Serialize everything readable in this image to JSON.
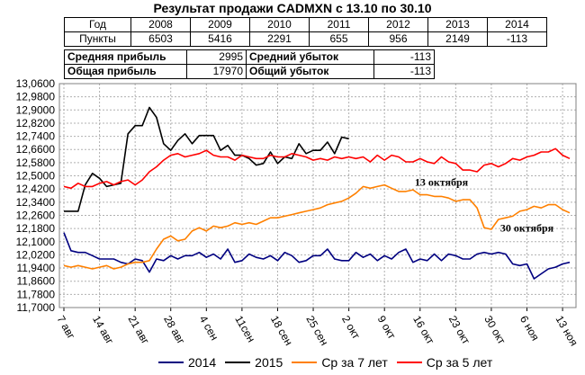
{
  "title": "Результат продажи CADMXN с 13.10 по 30.10",
  "years_table": {
    "header_label": "Год",
    "row_label": "Пункты",
    "years": [
      "2008",
      "2009",
      "2010",
      "2011",
      "2012",
      "2013",
      "2014"
    ],
    "points": [
      "6503",
      "5416",
      "2291",
      "655",
      "956",
      "2149",
      "-113"
    ]
  },
  "stats_table": {
    "avg_profit_label": "Средняя прибыль",
    "avg_profit_value": "2995",
    "avg_loss_label": "Средний убыток",
    "avg_loss_value": "-113",
    "total_profit_label": "Общая прибыль",
    "total_profit_value": "17970",
    "total_loss_label": "Общий убыток",
    "total_loss_value": "-113"
  },
  "colors": {
    "series_2014": "#000080",
    "series_2015": "#000000",
    "avg7": "#FF8000",
    "avg5": "#FF0000",
    "grid": "#B0B0B0",
    "background": "#FFFFFF"
  },
  "chart_data": {
    "type": "line",
    "ylim": [
      11.7,
      13.06
    ],
    "yticks": [
      "13,0600",
      "12,9800",
      "12,9000",
      "12,8200",
      "12,7400",
      "12,6600",
      "12,5800",
      "12,5000",
      "12,4200",
      "12,3400",
      "12,2600",
      "12,1800",
      "12,1000",
      "12,0200",
      "11,9400",
      "11,8600",
      "11,7800",
      "11,7000"
    ],
    "yticks_values": [
      13.06,
      12.98,
      12.9,
      12.82,
      12.74,
      12.66,
      12.58,
      12.5,
      12.42,
      12.34,
      12.26,
      12.18,
      12.1,
      12.02,
      11.94,
      11.86,
      11.78,
      11.7
    ],
    "xlim": [
      0,
      71
    ],
    "xticks": [
      {
        "x": 0,
        "label": "7 авг"
      },
      {
        "x": 5,
        "label": "14 авг"
      },
      {
        "x": 10,
        "label": "21 авг"
      },
      {
        "x": 15,
        "label": "28 авг"
      },
      {
        "x": 20,
        "label": "4 сен"
      },
      {
        "x": 25,
        "label": "11сен"
      },
      {
        "x": 30,
        "label": "18 сен"
      },
      {
        "x": 35,
        "label": "25 сен"
      },
      {
        "x": 40,
        "label": "2 окт"
      },
      {
        "x": 45,
        "label": "9 окт"
      },
      {
        "x": 50,
        "label": "16 окт"
      },
      {
        "x": 55,
        "label": "23 окт"
      },
      {
        "x": 60,
        "label": "30 окт"
      },
      {
        "x": 65,
        "label": "6 ноя"
      },
      {
        "x": 70,
        "label": "13 ноя"
      }
    ],
    "annotations": [
      {
        "text": "13 октября",
        "x": 49,
        "y": 12.43
      },
      {
        "text": "30 октября",
        "x": 61,
        "y": 12.15
      }
    ],
    "series": [
      {
        "name": "2014",
        "color_key": "series_2014",
        "values": [
          12.155,
          12.045,
          12.035,
          12.035,
          12.015,
          11.995,
          11.995,
          11.995,
          11.975,
          11.965,
          11.995,
          11.985,
          11.915,
          11.995,
          11.985,
          12.015,
          11.995,
          12.015,
          12.015,
          12.035,
          12.005,
          12.025,
          11.995,
          12.055,
          11.975,
          11.985,
          12.025,
          12.005,
          11.995,
          12.015,
          11.985,
          12.035,
          12.015,
          11.975,
          11.985,
          12.015,
          12.015,
          12.055,
          11.995,
          11.985,
          11.985,
          12.035,
          12.005,
          12.025,
          11.985,
          12.015,
          11.995,
          12.035,
          12.055,
          11.975,
          11.995,
          11.985,
          12.025,
          11.985,
          12.025,
          12.015,
          11.995,
          11.995,
          12.025,
          12.035,
          12.025,
          12.035,
          12.025,
          11.965,
          11.955,
          11.965,
          11.875,
          11.905,
          11.935,
          11.945,
          11.965,
          11.975
        ]
      },
      {
        "name": "2015",
        "color_key": "series_2015",
        "values": [
          12.285,
          12.285,
          12.285,
          12.445,
          12.515,
          12.485,
          12.435,
          12.445,
          12.455,
          12.755,
          12.805,
          12.805,
          12.915,
          12.855,
          12.695,
          12.655,
          12.715,
          12.755,
          12.695,
          12.745,
          12.745,
          12.745,
          12.655,
          12.685,
          12.625,
          12.625,
          12.605,
          12.565,
          12.575,
          12.645,
          12.575,
          12.615,
          12.605,
          12.695,
          12.635,
          12.655,
          12.655,
          12.705,
          12.635,
          12.735,
          12.725
        ]
      },
      {
        "name": "Ср за 7 лет",
        "color_key": "avg7",
        "values": [
          11.955,
          11.945,
          11.955,
          11.945,
          11.935,
          11.945,
          11.955,
          11.935,
          11.945,
          11.965,
          11.975,
          11.975,
          11.985,
          12.055,
          12.115,
          12.135,
          12.105,
          12.115,
          12.165,
          12.185,
          12.165,
          12.195,
          12.185,
          12.195,
          12.215,
          12.205,
          12.215,
          12.205,
          12.225,
          12.245,
          12.245,
          12.255,
          12.265,
          12.275,
          12.285,
          12.295,
          12.305,
          12.325,
          12.335,
          12.345,
          12.365,
          12.395,
          12.435,
          12.425,
          12.435,
          12.445,
          12.425,
          12.405,
          12.405,
          12.415,
          12.385,
          12.385,
          12.375,
          12.375,
          12.365,
          12.345,
          12.355,
          12.355,
          12.305,
          12.185,
          12.175,
          12.235,
          12.245,
          12.255,
          12.285,
          12.295,
          12.315,
          12.305,
          12.325,
          12.325,
          12.295,
          12.275
        ]
      },
      {
        "name": "Ср за 5 лет",
        "color_key": "avg5",
        "values": [
          12.435,
          12.425,
          12.455,
          12.435,
          12.435,
          12.455,
          12.465,
          12.445,
          12.465,
          12.475,
          12.445,
          12.475,
          12.525,
          12.555,
          12.595,
          12.625,
          12.635,
          12.615,
          12.625,
          12.635,
          12.655,
          12.625,
          12.615,
          12.615,
          12.595,
          12.625,
          12.615,
          12.605,
          12.605,
          12.625,
          12.615,
          12.615,
          12.635,
          12.625,
          12.615,
          12.595,
          12.605,
          12.595,
          12.615,
          12.605,
          12.615,
          12.605,
          12.615,
          12.585,
          12.625,
          12.595,
          12.625,
          12.615,
          12.585,
          12.585,
          12.605,
          12.585,
          12.575,
          12.615,
          12.585,
          12.575,
          12.535,
          12.535,
          12.525,
          12.565,
          12.575,
          12.555,
          12.575,
          12.605,
          12.595,
          12.615,
          12.625,
          12.645,
          12.645,
          12.665,
          12.625,
          12.605
        ]
      }
    ]
  },
  "legend": [
    "2014",
    "2015",
    "Ср за 7 лет",
    "Ср за 5 лет"
  ]
}
